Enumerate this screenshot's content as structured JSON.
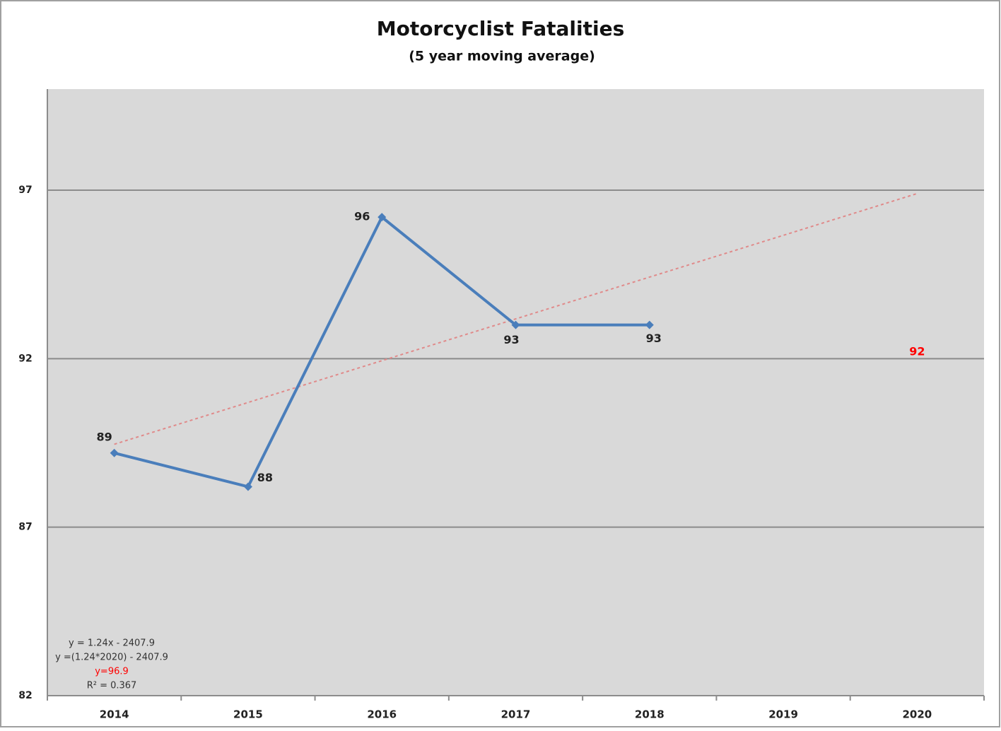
{
  "chart_data": {
    "type": "line",
    "title": "Motorcyclist Fatalities",
    "subtitle": "(5 year moving average)",
    "categories": [
      "2014",
      "2015",
      "2016",
      "2017",
      "2018",
      "2019",
      "2020"
    ],
    "series": [
      {
        "color": "#4a7ebb",
        "values": [
          89.2,
          88.2,
          96.2,
          93,
          93,
          null,
          null
        ],
        "value_labels": [
          "89",
          "88",
          "96",
          "93",
          "93",
          null,
          null
        ]
      }
    ],
    "trendline": {
      "color": "#e08a8a",
      "values": [
        89.46,
        90.7,
        91.94,
        93.18,
        94.42,
        95.66,
        96.9
      ]
    },
    "target": {
      "text": "92",
      "x": "2020",
      "y": 92.2,
      "color": "#ff0000"
    },
    "equation": [
      {
        "text": "y = 1.24x - 2407.9",
        "color": "#333333"
      },
      {
        "text": "y =(1.24*2020) - 2407.9",
        "color": "#333333"
      },
      {
        "text": "y=96.9",
        "color": "#ff0000"
      },
      {
        "text": "R² = 0.367",
        "color": "#333333"
      }
    ],
    "ylim": [
      82,
      100
    ],
    "yticks": [
      82,
      87,
      92,
      97
    ],
    "grid": true
  }
}
